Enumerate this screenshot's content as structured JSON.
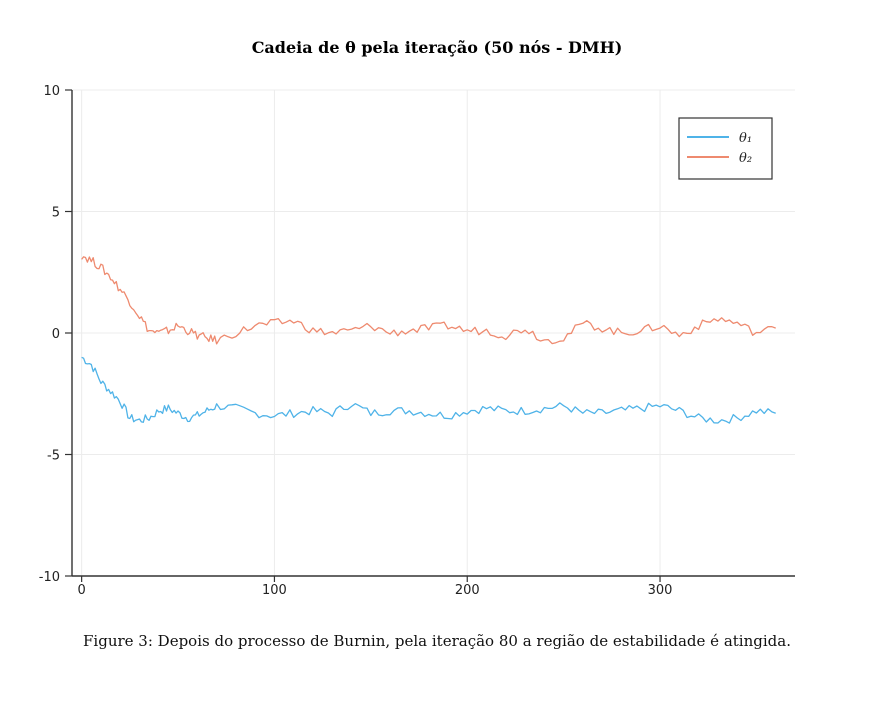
{
  "chart_data": {
    "type": "line",
    "title": "Cadeia de θ pela iteração (50 nós - DMH)",
    "xlabel": "",
    "ylabel": "",
    "xlim": [
      -5,
      370
    ],
    "ylim": [
      -10,
      10
    ],
    "xticks": [
      0,
      100,
      200,
      300
    ],
    "yticks": [
      10,
      5,
      0,
      -5,
      -10
    ],
    "xtick_labels": [
      "0",
      "100",
      "200",
      "300"
    ],
    "ytick_labels": [
      "10",
      "5",
      "0",
      "-5",
      "-10"
    ],
    "grid": true,
    "legend_position": "top-right",
    "series": [
      {
        "name": "θ₁",
        "color": "#4fb3e8",
        "x": [
          0,
          5,
          10,
          15,
          20,
          25,
          30,
          35,
          40,
          45,
          50,
          55,
          60,
          65,
          70,
          80,
          90,
          100,
          110,
          120,
          130,
          140,
          150,
          160,
          170,
          180,
          190,
          200,
          210,
          220,
          230,
          240,
          250,
          260,
          270,
          280,
          290,
          300,
          310,
          320,
          330,
          340,
          350,
          360
        ],
        "values": [
          -1.0,
          -1.3,
          -2.0,
          -2.4,
          -2.8,
          -3.5,
          -3.6,
          -3.5,
          -3.2,
          -3.1,
          -3.3,
          -3.5,
          -3.4,
          -3.2,
          -3.0,
          -3.1,
          -3.3,
          -3.4,
          -3.3,
          -3.2,
          -3.3,
          -2.9,
          -3.3,
          -3.2,
          -3.2,
          -3.3,
          -3.4,
          -3.2,
          -3.1,
          -3.2,
          -3.2,
          -3.1,
          -3.0,
          -3.3,
          -3.3,
          -3.2,
          -3.1,
          -3.0,
          -3.2,
          -3.5,
          -3.6,
          -3.5,
          -3.2,
          -3.3
        ]
      },
      {
        "name": "θ₂",
        "color": "#ee8a6f",
        "x": [
          0,
          5,
          10,
          15,
          20,
          25,
          30,
          35,
          40,
          45,
          50,
          55,
          60,
          65,
          70,
          80,
          90,
          100,
          110,
          120,
          130,
          140,
          150,
          160,
          170,
          180,
          190,
          200,
          210,
          220,
          230,
          240,
          250,
          260,
          270,
          280,
          290,
          300,
          310,
          320,
          330,
          340,
          350,
          360
        ],
        "values": [
          3.2,
          3.0,
          2.7,
          2.3,
          1.8,
          1.3,
          0.7,
          0.1,
          0.0,
          0.1,
          0.3,
          0.1,
          -0.1,
          -0.2,
          -0.3,
          0.0,
          0.3,
          0.4,
          0.5,
          0.1,
          0.0,
          0.1,
          0.3,
          0.0,
          0.1,
          0.2,
          0.3,
          0.1,
          0.1,
          -0.1,
          0.2,
          -0.3,
          -0.2,
          0.4,
          0.2,
          0.0,
          0.1,
          0.3,
          -0.1,
          0.3,
          0.6,
          0.4,
          0.0,
          0.2
        ]
      }
    ]
  },
  "caption": "Figure 3: Depois do processo de Burnin, pela iteração 80 a região de estabilidade é atingida."
}
